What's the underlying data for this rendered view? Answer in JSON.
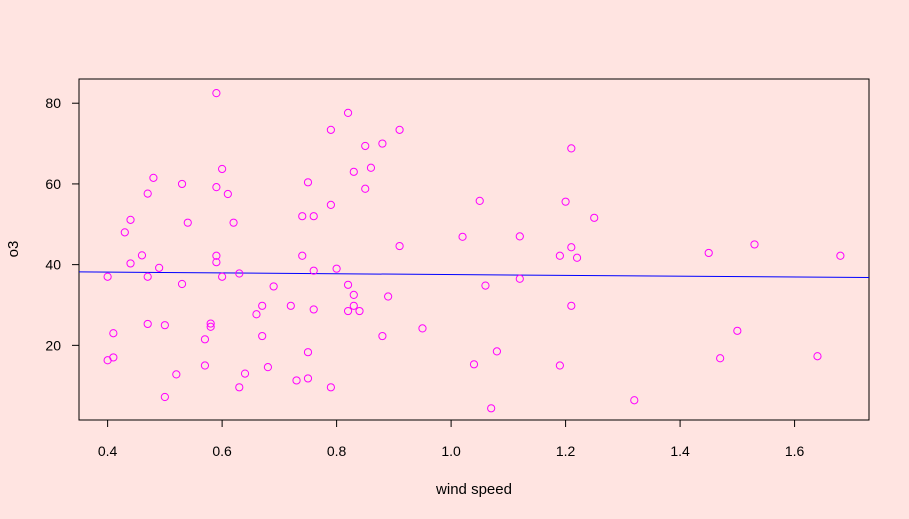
{
  "colors": {
    "background": "#ffe4e1",
    "points": "#ff00ff",
    "fit_line": "#0000ff",
    "axes": "#000000"
  },
  "chart_data": {
    "type": "scatter",
    "title": "",
    "xlabel": "wind speed",
    "ylabel": "o3",
    "xlim": [
      0.35,
      1.73
    ],
    "ylim": [
      1.5,
      86
    ],
    "x_ticks": [
      0.4,
      0.6,
      0.8,
      1.0,
      1.2,
      1.4,
      1.6
    ],
    "x_tick_labels": [
      "0.4",
      "0.6",
      "0.8",
      "1.0",
      "1.2",
      "1.4",
      "1.6"
    ],
    "y_ticks": [
      20,
      40,
      60,
      80
    ],
    "y_tick_labels": [
      "20",
      "40",
      "60",
      "80"
    ],
    "grid": false,
    "legend": "none",
    "fit_line": {
      "type": "linear",
      "x": [
        0.35,
        1.73
      ],
      "y": [
        38.2,
        36.8
      ]
    },
    "series": [
      {
        "x": [
          0.4,
          0.4,
          0.41,
          0.41,
          0.43,
          0.44,
          0.44,
          0.46,
          0.47,
          0.47,
          0.47,
          0.48,
          0.49,
          0.5,
          0.5,
          0.52,
          0.53,
          0.53,
          0.54,
          0.57,
          0.57,
          0.58,
          0.58,
          0.59,
          0.59,
          0.59,
          0.59,
          0.6,
          0.6,
          0.61,
          0.62,
          0.63,
          0.63,
          0.64,
          0.66,
          0.67,
          0.67,
          0.68,
          0.69,
          0.72,
          0.73,
          0.74,
          0.74,
          0.75,
          0.75,
          0.75,
          0.76,
          0.76,
          0.76,
          0.79,
          0.79,
          0.79,
          0.8,
          0.82,
          0.82,
          0.82,
          0.83,
          0.83,
          0.83,
          0.84,
          0.85,
          0.85,
          0.86,
          0.88,
          0.88,
          0.89,
          0.91,
          0.91,
          0.95,
          1.02,
          1.04,
          1.05,
          1.06,
          1.07,
          1.08,
          1.12,
          1.12,
          1.19,
          1.19,
          1.2,
          1.21,
          1.21,
          1.21,
          1.22,
          1.25,
          1.32,
          1.45,
          1.47,
          1.5,
          1.53,
          1.64,
          1.68
        ],
        "y": [
          37.0,
          16.3,
          17.0,
          23.0,
          48.0,
          40.3,
          51.1,
          42.3,
          57.6,
          25.3,
          37.0,
          61.5,
          39.2,
          25.0,
          7.2,
          12.8,
          60.0,
          35.2,
          50.4,
          21.5,
          15.0,
          25.4,
          24.6,
          82.5,
          59.2,
          42.2,
          40.6,
          63.7,
          37.0,
          57.5,
          50.4,
          37.8,
          9.6,
          13.0,
          27.7,
          29.8,
          22.3,
          14.6,
          34.6,
          29.8,
          11.3,
          52.0,
          42.2,
          18.3,
          11.8,
          60.4,
          52.0,
          38.5,
          28.9,
          73.4,
          54.8,
          9.6,
          39.0,
          77.6,
          35.0,
          28.5,
          63.0,
          32.5,
          29.8,
          28.5,
          69.4,
          58.8,
          64.0,
          70.0,
          22.3,
          32.1,
          73.4,
          44.6,
          24.2,
          46.9,
          15.3,
          55.8,
          34.8,
          4.4,
          18.5,
          47.0,
          36.5,
          15.0,
          42.2,
          55.6,
          68.8,
          44.3,
          29.8,
          41.7,
          51.6,
          6.4,
          42.9,
          16.8,
          23.6,
          45.0,
          17.3,
          42.2
        ]
      }
    ]
  }
}
